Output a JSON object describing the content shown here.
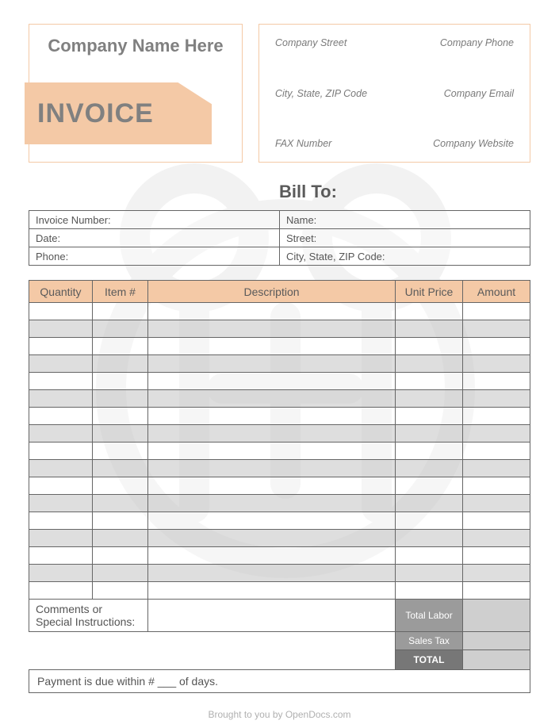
{
  "header": {
    "company_name": "Company Name Here",
    "invoice_word": "INVOICE",
    "info": {
      "street": "Company Street",
      "phone": "Company Phone",
      "city": "City, State, ZIP Code",
      "email": "Company Email",
      "fax": "FAX Number",
      "website": "Company Website"
    }
  },
  "billto": {
    "title": "Bill To:",
    "left": {
      "invoice_number": "Invoice Number:",
      "date": "Date:",
      "phone": "Phone:"
    },
    "right": {
      "name": "Name:",
      "street": "Street:",
      "city": "City, State, ZIP Code:"
    }
  },
  "items": {
    "headers": {
      "qty": "Quantity",
      "item": "Item #",
      "desc": "Description",
      "price": "Unit Price",
      "amount": "Amount"
    },
    "row_count": 17
  },
  "comments_label": "Comments or Special Instructions:",
  "totals": {
    "labor": "Total Labor",
    "tax": "Sales Tax",
    "total": "TOTAL"
  },
  "payment_text": "Payment is due within # ___ of days.",
  "footer": "Brought to you by OpenDocs.com",
  "colors": {
    "accent": "#f4c9a6",
    "gray_text": "#808080",
    "total_bg": "#9b9b9b",
    "total_final_bg": "#777777"
  }
}
